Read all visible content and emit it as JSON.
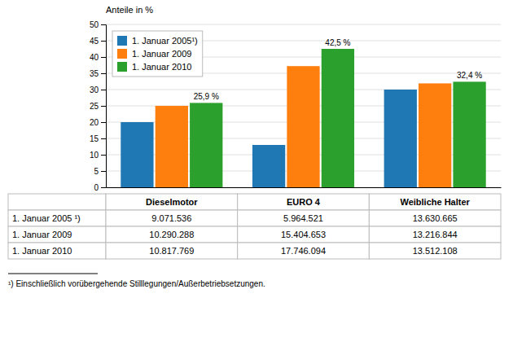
{
  "chart_data": {
    "type": "bar",
    "ylabel": "Anteile in %",
    "categories": [
      "Dieselmotor",
      "EURO 4",
      "Weibliche Halter"
    ],
    "series": [
      {
        "name": "1. Januar 2005¹)",
        "values": [
          20.0,
          13.0,
          30.0
        ]
      },
      {
        "name": "1. Januar 2009",
        "values": [
          25.0,
          37.2,
          31.9
        ]
      },
      {
        "name": "1. Januar 2010",
        "values": [
          25.9,
          42.5,
          32.4
        ],
        "value_labels": [
          "25,9 %",
          "42,5 %",
          "32,4 %"
        ]
      }
    ],
    "ylim": [
      0,
      50
    ],
    "yticks": [
      0,
      5,
      10,
      15,
      20,
      25,
      30,
      35,
      40,
      45,
      50
    ],
    "grid": true,
    "legend": "upper left",
    "tick_labels": "y",
    "table": {
      "rows": [
        [
          "1. Januar 2005 ¹)",
          "9.071.536",
          "5.964.521",
          "13.630.665"
        ],
        [
          "1. Januar 2009",
          "10.290.288",
          "15.404.653",
          "13.216.844"
        ],
        [
          "1. Januar 2010",
          "10.817.769",
          "17.746.094",
          "13.512.108"
        ]
      ]
    },
    "footnote": "¹) Einschließlich vorübergehende Stilllegungen/Außerbetriebsetzungen."
  }
}
